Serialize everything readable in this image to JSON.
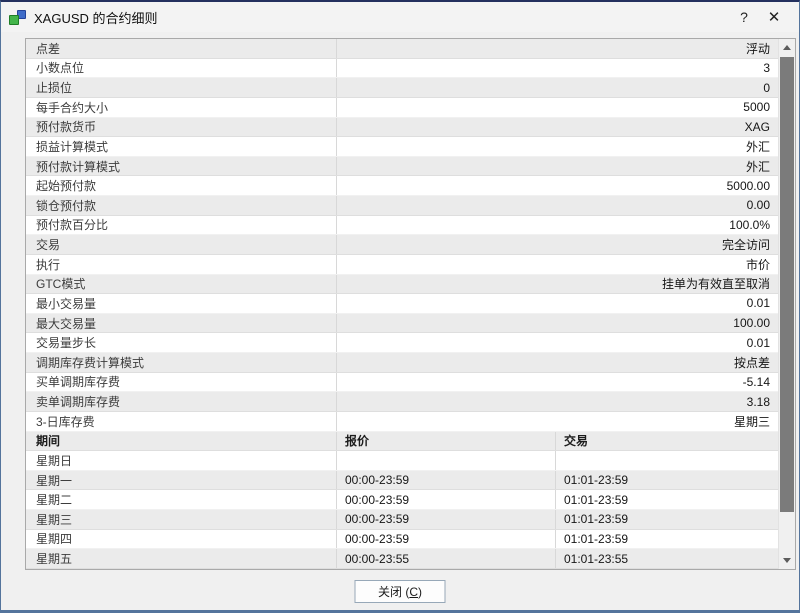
{
  "colors": {
    "dialog_border": "#54749c",
    "row_alt_gray": "#ebebeb",
    "scroll_thumb": "#7b7b7b",
    "icon_green": "#43b54a",
    "icon_blue": "#3f6cc9"
  },
  "titlebar": {
    "title": "XAGUSD 的合约细则",
    "help_glyph": "?",
    "close_glyph": "✕"
  },
  "spec_rows": [
    {
      "label": "点差",
      "value": "浮动"
    },
    {
      "label": "小数点位",
      "value": "3"
    },
    {
      "label": "止损位",
      "value": "0"
    },
    {
      "label": "每手合约大小",
      "value": "5000"
    },
    {
      "label": "预付款货币",
      "value": "XAG"
    },
    {
      "label": "损益计算模式",
      "value": "外汇"
    },
    {
      "label": "预付款计算模式",
      "value": "外汇"
    },
    {
      "label": "起始预付款",
      "value": "5000.00"
    },
    {
      "label": "锁仓预付款",
      "value": "0.00"
    },
    {
      "label": "预付款百分比",
      "value": "100.0%"
    },
    {
      "label": "交易",
      "value": "完全访问"
    },
    {
      "label": "执行",
      "value": "市价"
    },
    {
      "label": "GTC模式",
      "value": "挂单为有效直至取消"
    },
    {
      "label": "最小交易量",
      "value": "0.01"
    },
    {
      "label": "最大交易量",
      "value": "100.00"
    },
    {
      "label": "交易量步长",
      "value": "0.01"
    },
    {
      "label": "调期库存费计算模式",
      "value": "按点差"
    },
    {
      "label": "买单调期库存费",
      "value": "-5.14"
    },
    {
      "label": "卖单调期库存费",
      "value": "3.18"
    },
    {
      "label": "3-日库存费",
      "value": "星期三"
    }
  ],
  "sessions": {
    "headers": {
      "period": "期间",
      "quotes": "报价",
      "trade": "交易"
    },
    "rows": [
      {
        "day": "星期日",
        "quotes": "",
        "trade": ""
      },
      {
        "day": "星期一",
        "quotes": "00:00-23:59",
        "trade": "01:01-23:59"
      },
      {
        "day": "星期二",
        "quotes": "00:00-23:59",
        "trade": "01:01-23:59"
      },
      {
        "day": "星期三",
        "quotes": "00:00-23:59",
        "trade": "01:01-23:59"
      },
      {
        "day": "星期四",
        "quotes": "00:00-23:59",
        "trade": "01:01-23:59"
      },
      {
        "day": "星期五",
        "quotes": "00:00-23:55",
        "trade": "01:01-23:55"
      }
    ]
  },
  "footer": {
    "close_prefix": "关闭 (",
    "close_key": "C",
    "close_suffix": ")"
  }
}
